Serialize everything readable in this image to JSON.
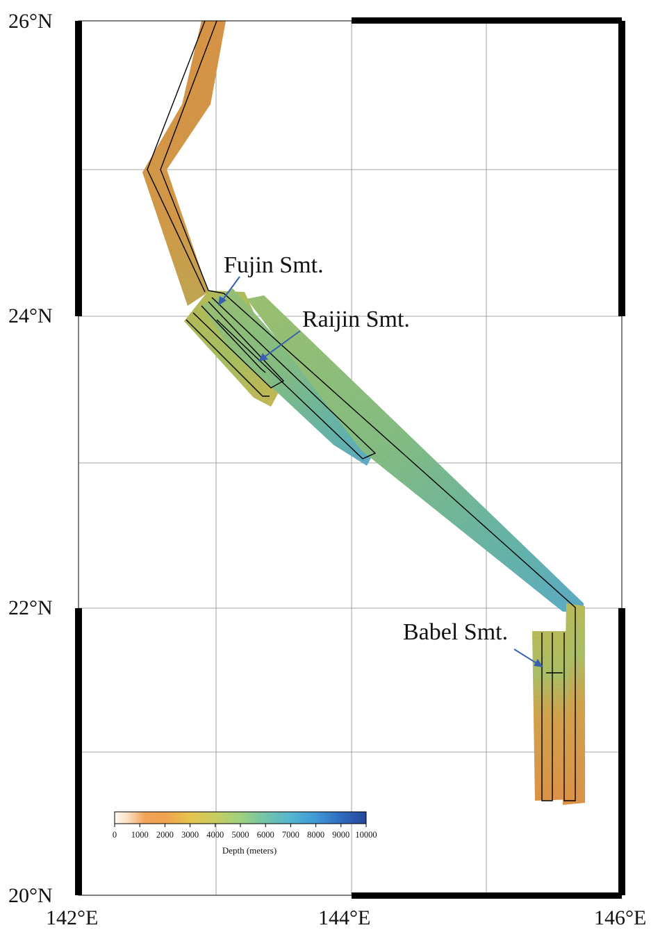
{
  "map": {
    "lat_labels": [
      "26°N",
      "24°N",
      "22°N",
      "20°N"
    ],
    "lon_labels": [
      "142°E",
      "144°E",
      "146°E"
    ],
    "extent": {
      "lon_min": 142,
      "lon_max": 146,
      "lat_min": 20,
      "lat_max": 26
    },
    "gridline_step_deg": 1,
    "annotations": [
      {
        "text": "Fujin Smt.",
        "arrow_color": "#3a5fb0"
      },
      {
        "text": "Raijin Smt.",
        "arrow_color": "#3a5fb0"
      },
      {
        "text": "Babel Smt.",
        "arrow_color": "#3a5fb0"
      }
    ],
    "colorbar": {
      "title": "Depth (meters)",
      "ticks": [
        "0",
        "1000",
        "2000",
        "3000",
        "4000",
        "5000",
        "6000",
        "7000",
        "8000",
        "9000",
        "10000"
      ],
      "range": [
        0,
        10000
      ],
      "colors": [
        "#fffaf3",
        "#f2a35a",
        "#f0b253",
        "#cfc85c",
        "#a5cf79",
        "#7cc6a3",
        "#56b6cc",
        "#3d8ed0",
        "#26509c"
      ]
    },
    "colors": {
      "arrow": "#3a5fb0",
      "frame": "#000000",
      "grid": "#777777"
    }
  }
}
